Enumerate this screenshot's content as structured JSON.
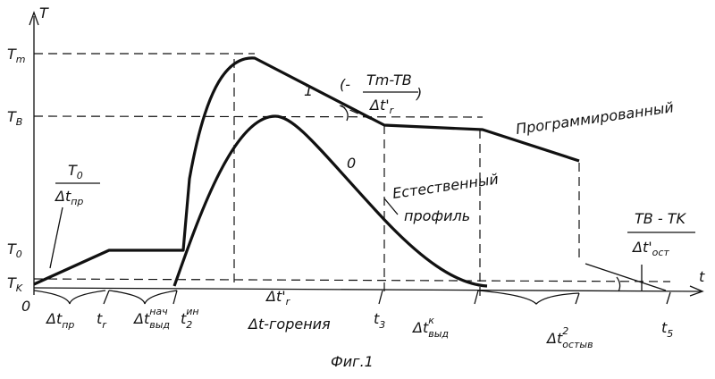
{
  "axes": {
    "y_label": "T",
    "x_label": "t",
    "origin": "0"
  },
  "y_labels": {
    "tm": {
      "main": "T",
      "sub": "m"
    },
    "tb": {
      "main": "T",
      "sub": "B"
    },
    "to": {
      "main": "T",
      "sub": "0"
    },
    "tk": {
      "main": "T",
      "sub": "K"
    }
  },
  "curves": {
    "programmed": {
      "number": "1",
      "label": "Программированный"
    },
    "natural": {
      "number": "0",
      "label_line1": "Естественный",
      "label_line2": "профиль"
    }
  },
  "formulas": {
    "heating": {
      "num": "T",
      "num_sub": "0",
      "den": "Δt",
      "den_sub": "пр"
    },
    "cooling_prog": {
      "prefix": "(-",
      "num": "Tm-TB",
      "den": "Δt'",
      "den_sub": "r",
      "suffix": ")"
    },
    "cooling_final": {
      "num": "TB - TK",
      "den": "Δt'",
      "den_sub": "ост"
    }
  },
  "x_labels": [
    {
      "main": "Δt",
      "sub": "пр",
      "sup": ""
    },
    {
      "main": "t",
      "sub": "r",
      "sup": ""
    },
    {
      "main": "Δt",
      "sub": "выд",
      "sup": "нач"
    },
    {
      "main": "t",
      "sub": "2",
      "sup": "ин"
    },
    {
      "main": "Δt-горения",
      "sub": "",
      "sup": ""
    },
    {
      "main": "t",
      "sub": "3",
      "sup": ""
    },
    {
      "main": "Δt",
      "sub": "выд",
      "sup": "к"
    },
    {
      "main": "Δt",
      "sub": "остыв",
      "sup": "2"
    },
    {
      "main": "t",
      "sub": "5",
      "sup": ""
    }
  ],
  "burn_label": {
    "main": "Δt'",
    "sub": "r"
  },
  "caption": "Фиг.1"
}
